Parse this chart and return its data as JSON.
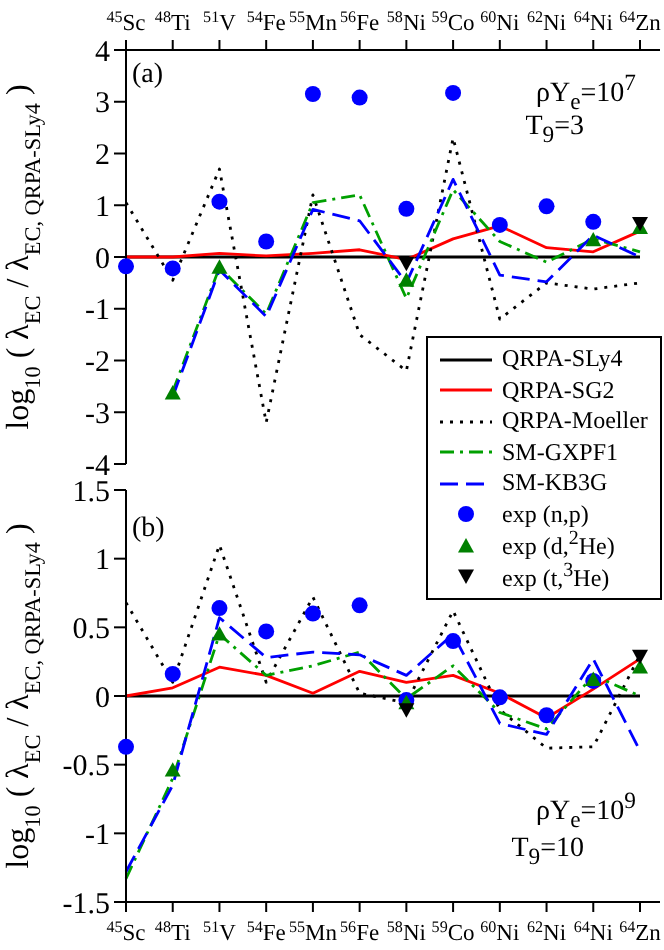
{
  "chart_data": [
    {
      "type": "line",
      "ylabel": "log$_{10}$ ( λ$_{EC}$ / λ$_{EC, QRPA-SLy4}$ )",
      "categories": [
        "$^{45}$Sc",
        "$^{48}$Ti",
        "$^{51}$V",
        "$^{54}$Fe",
        "$^{55}$Mn",
        "$^{56}$Fe",
        "$^{58}$Ni",
        "$^{59}$Co",
        "$^{60}$Ni",
        "$^{62}$Ni",
        "$^{64}$Ni",
        "$^{64}$Zn"
      ],
      "ylim": [
        -4,
        4
      ],
      "yticks": [
        -4,
        -3,
        -2,
        -1,
        0,
        1,
        2,
        3,
        4
      ],
      "legend": "bottom right",
      "tick_labels": "xy",
      "annotations": [
        "(a)",
        "ρY$_{e}$=10$^{7}$",
        "T$_{9}$=3"
      ],
      "series": [
        {
          "name": "QRPA-SLy4",
          "color": "#000000",
          "line_style": "solid",
          "values": [
            0,
            0,
            0,
            0,
            0,
            0,
            0,
            0,
            0,
            0,
            0,
            0
          ]
        },
        {
          "name": "QRPA-SG2",
          "color": "#ff0000",
          "line_style": "solid",
          "values": [
            0,
            0,
            0.07,
            0.02,
            0.07,
            0.14,
            -0.05,
            0.35,
            0.6,
            0.18,
            0.1,
            0.5
          ]
        },
        {
          "name": "QRPA-Moeller",
          "color": "#000000",
          "line_style": "dotted",
          "values": [
            1.05,
            -0.45,
            1.7,
            -3.2,
            1.2,
            -1.5,
            -2.2,
            2.3,
            -1.2,
            -0.5,
            -0.62,
            -0.5
          ]
        },
        {
          "name": "SM-GXPF1",
          "color": "#00a000",
          "line_style": "dashdot",
          "values": [
            null,
            -2.6,
            -0.2,
            -1.1,
            1.05,
            1.2,
            -0.8,
            1.3,
            0.3,
            -0.1,
            0.35,
            0.1
          ]
        },
        {
          "name": "SM-KB3G",
          "color": "#0000ff",
          "line_style": "dashed",
          "values": [
            null,
            -2.7,
            -0.25,
            -1.15,
            0.92,
            0.7,
            -0.5,
            1.5,
            -0.35,
            -0.48,
            0.42,
            0
          ]
        },
        {
          "name": "exp (n,p)",
          "type": "scatter",
          "marker": "circle",
          "color": "#0000ff",
          "values": [
            -0.18,
            -0.22,
            1.07,
            0.3,
            3.15,
            3.08,
            0.93,
            3.17,
            0.62,
            0.98,
            0.68,
            null
          ]
        },
        {
          "name": "exp (d,$^{2}$He)",
          "type": "scatter",
          "marker": "triangle",
          "color": "#008000",
          "values": [
            null,
            -2.63,
            -0.2,
            null,
            null,
            null,
            -0.45,
            null,
            null,
            null,
            0.33,
            0.57
          ]
        },
        {
          "name": "exp (t,$^{3}$He)",
          "type": "scatter",
          "marker": "triangle-down",
          "color": "#000000",
          "values": [
            null,
            null,
            null,
            null,
            null,
            null,
            -0.12,
            null,
            null,
            null,
            null,
            0.65
          ]
        }
      ]
    },
    {
      "type": "line",
      "ylabel": "log$_{10}$ ( λ$_{EC}$ / λ$_{EC, QRPA-SLy4}$ )",
      "categories": [
        "$^{45}$Sc",
        "$^{48}$Ti",
        "$^{51}$V",
        "$^{54}$Fe",
        "$^{55}$Mn",
        "$^{56}$Fe",
        "$^{58}$Ni",
        "$^{59}$Co",
        "$^{60}$Ni",
        "$^{62}$Ni",
        "$^{64}$Ni",
        "$^{64}$Zn"
      ],
      "ylim": [
        -1.5,
        1.5
      ],
      "yticks": [
        -1.5,
        -1,
        -0.5,
        0,
        0.5,
        1,
        1.5
      ],
      "annotations": [
        "(b)",
        "ρY$_{e}$=10$^{9}$",
        "T$_{9}$=10"
      ],
      "series": [
        {
          "color": "#000000",
          "line_style": "solid",
          "values": [
            0,
            0,
            0,
            0,
            0,
            0,
            0,
            0,
            0,
            0,
            0,
            0
          ]
        },
        {
          "color": "#ff0000",
          "line_style": "solid",
          "values": [
            0,
            0.06,
            0.21,
            0.15,
            0.02,
            0.18,
            0.1,
            0.15,
            0.02,
            -0.16,
            0.05,
            0.27
          ]
        },
        {
          "color": "#000000",
          "line_style": "dotted",
          "values": [
            0.68,
            0.1,
            1.1,
            0.1,
            0.72,
            0.02,
            -0.05,
            0.62,
            -0.1,
            -0.38,
            -0.37,
            0.3
          ]
        },
        {
          "color": "#00a000",
          "line_style": "dashdot",
          "values": [
            -1.33,
            -0.6,
            0.45,
            0.15,
            0.22,
            0.32,
            -0.02,
            0.22,
            -0.12,
            -0.24,
            0.15,
            0
          ]
        },
        {
          "color": "#0000ff",
          "line_style": "dashed",
          "values": [
            -1.28,
            -0.65,
            0.57,
            0.28,
            0.32,
            0.3,
            0.15,
            0.45,
            -0.2,
            -0.28,
            0.27,
            -0.4
          ]
        },
        {
          "type": "scatter",
          "marker": "circle",
          "color": "#0000ff",
          "values": [
            -0.37,
            0.16,
            0.64,
            0.47,
            0.6,
            0.66,
            -0.03,
            0.4,
            -0.01,
            -0.14,
            0.11,
            null
          ]
        },
        {
          "type": "scatter",
          "marker": "triangle",
          "color": "#008000",
          "values": [
            null,
            -0.54,
            0.45,
            null,
            null,
            null,
            -0.05,
            null,
            null,
            null,
            0.12,
            0.21
          ]
        },
        {
          "type": "scatter",
          "marker": "triangle-down",
          "color": "#000000",
          "values": [
            null,
            null,
            null,
            null,
            null,
            null,
            -0.1,
            null,
            null,
            null,
            null,
            0.29
          ]
        }
      ]
    }
  ]
}
